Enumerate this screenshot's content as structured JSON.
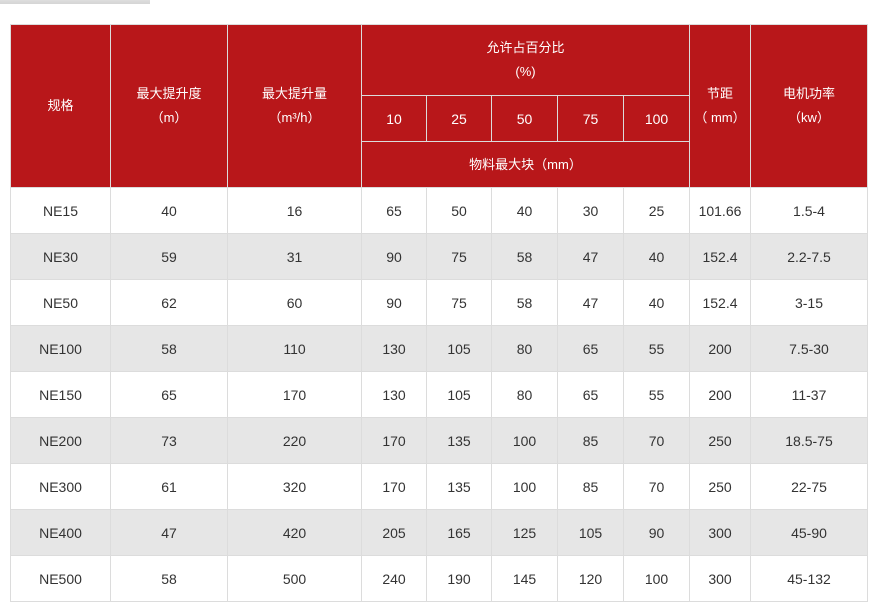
{
  "header": {
    "spec": "规格",
    "lift_height": "最大提升度",
    "lift_height_unit": "（m）",
    "capacity": "最大提升量",
    "capacity_unit": "（m³/h）",
    "allow_pct": "允许占百分比",
    "allow_pct_unit": "(%)",
    "pcts": [
      "10",
      "25",
      "50",
      "75",
      "100"
    ],
    "max_block": "物料最大块（mm）",
    "pitch": "节距",
    "pitch_unit": "（ mm）",
    "power": "电机功率",
    "power_unit": "（kw）"
  },
  "rows": [
    [
      "NE15",
      "40",
      "16",
      "65",
      "50",
      "40",
      "30",
      "25",
      "101.66",
      "1.5-4"
    ],
    [
      "NE30",
      "59",
      "31",
      "90",
      "75",
      "58",
      "47",
      "40",
      "152.4",
      "2.2-7.5"
    ],
    [
      "NE50",
      "62",
      "60",
      "90",
      "75",
      "58",
      "47",
      "40",
      "152.4",
      "3-15"
    ],
    [
      "NE100",
      "58",
      "110",
      "130",
      "105",
      "80",
      "65",
      "55",
      "200",
      "7.5-30"
    ],
    [
      "NE150",
      "65",
      "170",
      "130",
      "105",
      "80",
      "65",
      "55",
      "200",
      "11-37"
    ],
    [
      "NE200",
      "73",
      "220",
      "170",
      "135",
      "100",
      "85",
      "70",
      "250",
      "18.5-75"
    ],
    [
      "NE300",
      "61",
      "320",
      "170",
      "135",
      "100",
      "85",
      "70",
      "250",
      "22-75"
    ],
    [
      "NE400",
      "47",
      "420",
      "205",
      "165",
      "125",
      "105",
      "90",
      "300",
      "45-90"
    ],
    [
      "NE500",
      "58",
      "500",
      "240",
      "190",
      "145",
      "120",
      "100",
      "300",
      "45-132"
    ]
  ],
  "colors": {
    "header_bg": "#b8171a",
    "alt_row": "#e6e6e6"
  }
}
